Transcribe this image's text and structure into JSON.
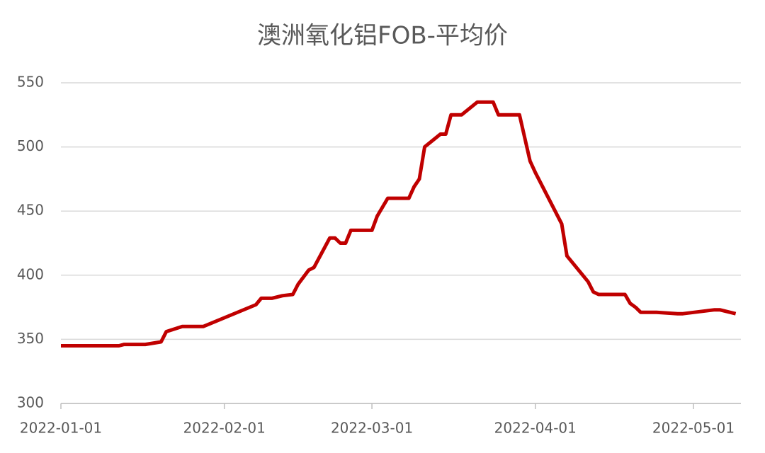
{
  "chart_data": {
    "type": "line",
    "title": "澳洲氧化铝FOB-平均价",
    "series": [
      {
        "name": "澳洲氧化铝FOB-平均价",
        "color": "#c00000",
        "x": [
          "2022-01-01",
          "2022-01-12",
          "2022-01-13",
          "2022-01-17",
          "2022-01-20",
          "2022-01-21",
          "2022-01-24",
          "2022-01-28",
          "2022-02-07",
          "2022-02-08",
          "2022-02-10",
          "2022-02-12",
          "2022-02-14",
          "2022-02-15",
          "2022-02-17",
          "2022-02-18",
          "2022-02-21",
          "2022-02-22",
          "2022-02-23",
          "2022-02-24",
          "2022-02-25",
          "2022-03-01",
          "2022-03-02",
          "2022-03-04",
          "2022-03-08",
          "2022-03-09",
          "2022-03-10",
          "2022-03-11",
          "2022-03-14",
          "2022-03-15",
          "2022-03-16",
          "2022-03-18",
          "2022-03-21",
          "2022-03-24",
          "2022-03-25",
          "2022-03-29",
          "2022-03-31",
          "2022-04-01",
          "2022-04-06",
          "2022-04-07",
          "2022-04-11",
          "2022-04-12",
          "2022-04-13",
          "2022-04-18",
          "2022-04-19",
          "2022-04-20",
          "2022-04-21",
          "2022-04-24",
          "2022-04-28",
          "2022-04-29",
          "2022-05-05",
          "2022-05-06",
          "2022-05-09"
        ],
        "values": [
          345,
          345,
          346,
          346,
          348,
          356,
          360,
          360,
          377,
          382,
          382,
          384,
          385,
          393,
          404,
          406,
          429,
          429,
          425,
          425,
          435,
          435,
          446,
          460,
          460,
          469,
          475,
          500,
          510,
          510,
          525,
          525,
          535,
          535,
          525,
          525,
          489,
          480,
          440,
          415,
          395,
          387,
          385,
          385,
          378,
          375,
          371,
          371,
          370,
          370,
          373,
          373,
          370
        ]
      }
    ],
    "xlim": [
      "2022-01-01",
      "2022-05-10"
    ],
    "xticks": [
      "2022-01-01",
      "2022-02-01",
      "2022-03-01",
      "2022-04-01",
      "2022-05-01"
    ],
    "ylim": [
      300,
      550
    ],
    "yticks": [
      300,
      350,
      400,
      450,
      500,
      550
    ],
    "grid": true
  }
}
